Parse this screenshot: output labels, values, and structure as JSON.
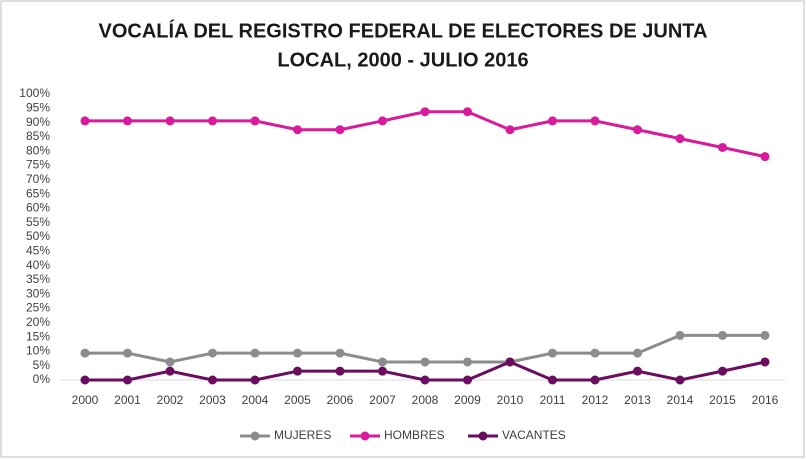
{
  "chart_data": {
    "type": "line",
    "title": [
      "VOCALÍA DEL REGISTRO FEDERAL DE ELECTORES DE JUNTA",
      "LOCAL, 2000 - JULIO 2016"
    ],
    "categories": [
      "2000",
      "2001",
      "2002",
      "2003",
      "2004",
      "2005",
      "2006",
      "2007",
      "2008",
      "2009",
      "2010",
      "2011",
      "2012",
      "2013",
      "2014",
      "2015",
      "2016"
    ],
    "series": [
      {
        "name": "MUJERES",
        "color": "#8c8c8c",
        "values": [
          9.4,
          9.4,
          6.3,
          9.4,
          9.4,
          9.4,
          9.4,
          6.3,
          6.3,
          6.3,
          6.3,
          9.4,
          9.4,
          9.4,
          15.6,
          15.6,
          15.6
        ]
      },
      {
        "name": "HOMBRES",
        "color": "#d81b9c",
        "values": [
          90.6,
          90.6,
          90.6,
          90.6,
          90.6,
          87.5,
          87.5,
          90.6,
          93.8,
          93.8,
          87.5,
          90.6,
          90.6,
          87.5,
          84.4,
          81.3,
          78.1
        ]
      },
      {
        "name": "VACANTES",
        "color": "#6a0d5f",
        "values": [
          0,
          0,
          3.1,
          0,
          0,
          3.1,
          3.1,
          3.1,
          0,
          0,
          6.3,
          0,
          0,
          3.1,
          0,
          3.1,
          6.3
        ]
      }
    ],
    "ylim": [
      0,
      100
    ],
    "yticks": [
      {
        "value": 0,
        "label": "0%"
      },
      {
        "value": 5,
        "label": "5%"
      },
      {
        "value": 10,
        "label": "10%"
      },
      {
        "value": 15,
        "label": "15%"
      },
      {
        "value": 20,
        "label": "20%"
      },
      {
        "value": 25,
        "label": "25%"
      },
      {
        "value": 30,
        "label": "30%"
      },
      {
        "value": 35,
        "label": "35%"
      },
      {
        "value": 40,
        "label": "40%"
      },
      {
        "value": 45,
        "label": "45%"
      },
      {
        "value": 50,
        "label": "50%"
      },
      {
        "value": 55,
        "label": "55%"
      },
      {
        "value": 60,
        "label": "60%"
      },
      {
        "value": 65,
        "label": "65%"
      },
      {
        "value": 70,
        "label": "70%"
      },
      {
        "value": 75,
        "label": "75%"
      },
      {
        "value": 80,
        "label": "80%"
      },
      {
        "value": 85,
        "label": "85%"
      },
      {
        "value": 90,
        "label": "90%"
      },
      {
        "value": 95,
        "label": "95%"
      },
      {
        "value": 100,
        "label": "100%"
      }
    ],
    "grid": false,
    "legend": "bottom"
  }
}
